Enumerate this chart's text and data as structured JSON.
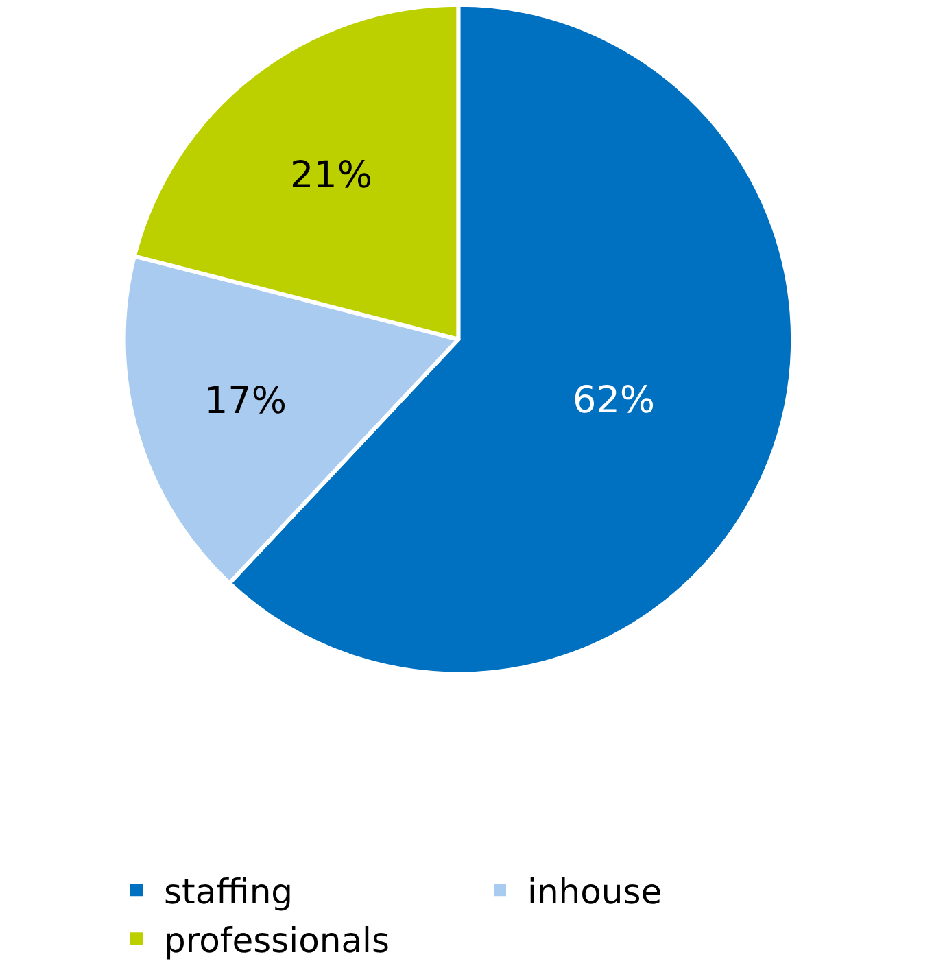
{
  "chart_data": {
    "type": "pie",
    "categories": [
      "staffing",
      "inhouse",
      "professionals"
    ],
    "values": [
      62,
      17,
      21
    ],
    "colors": [
      "#0070c0",
      "#a9cbf0",
      "#bcd000"
    ],
    "value_labels": [
      "62%",
      "17%",
      "21%"
    ],
    "legend": "bottom"
  }
}
